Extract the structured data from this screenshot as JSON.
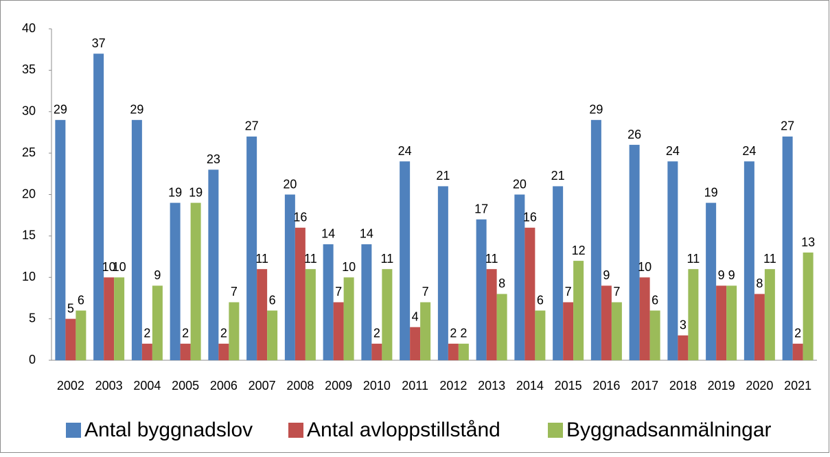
{
  "chart_data": {
    "type": "bar",
    "categories": [
      "2002",
      "2003",
      "2004",
      "2005",
      "2006",
      "2007",
      "2008",
      "2009",
      "2010",
      "2011",
      "2012",
      "2013",
      "2014",
      "2015",
      "2016",
      "2017",
      "2018",
      "2019",
      "2020",
      "2021"
    ],
    "series": [
      {
        "name": "Antal byggnadslov",
        "color": "#4f81bd",
        "values": [
          29,
          37,
          29,
          19,
          23,
          27,
          20,
          14,
          14,
          24,
          21,
          17,
          20,
          21,
          29,
          26,
          24,
          19,
          24,
          27
        ]
      },
      {
        "name": "Antal avloppstillstånd",
        "color": "#c0504d",
        "values": [
          5,
          10,
          2,
          2,
          2,
          11,
          16,
          7,
          2,
          4,
          2,
          11,
          16,
          7,
          9,
          10,
          3,
          9,
          8,
          2
        ]
      },
      {
        "name": "Byggnadsanmälningar",
        "color": "#9bbb59",
        "values": [
          6,
          10,
          9,
          19,
          7,
          6,
          11,
          10,
          11,
          7,
          2,
          8,
          6,
          12,
          7,
          6,
          11,
          9,
          11,
          13
        ]
      }
    ],
    "ylim": [
      0,
      40
    ],
    "yticks": [
      0,
      5,
      10,
      15,
      20,
      25,
      30,
      35,
      40
    ],
    "grid": false,
    "legend": "bottom"
  }
}
